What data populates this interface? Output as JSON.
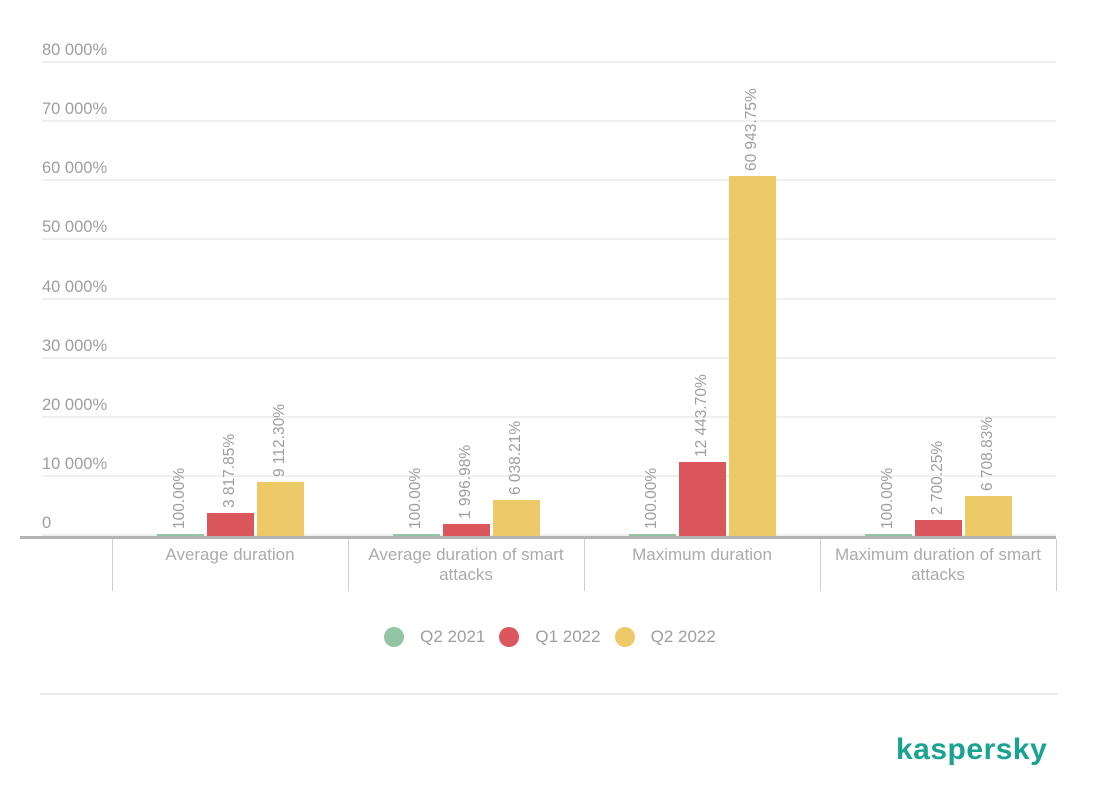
{
  "chart_data": {
    "type": "bar",
    "title": "",
    "categories": [
      "Average duration",
      "Average duration of smart attacks",
      "Maximum duration",
      "Maximum duration of smart attacks"
    ],
    "series": [
      {
        "name": "Q2 2021",
        "color": "#93c4a5",
        "values": [
          100.0,
          100.0,
          100.0,
          100.0
        ],
        "labels": [
          "100.00%",
          "100.00%",
          "100.00%",
          "100.00%"
        ]
      },
      {
        "name": "Q1 2022",
        "color": "#dc575d",
        "values": [
          3817.85,
          1996.98,
          12443.7,
          2700.25
        ],
        "labels": [
          "3 817.85%",
          "1 996.98%",
          "12 443.70%",
          "2 700.25%"
        ]
      },
      {
        "name": "Q2 2022",
        "color": "#edc968",
        "values": [
          9112.3,
          6038.21,
          60943.75,
          6708.83
        ],
        "labels": [
          "9 112.30%",
          "6 038.21%",
          "60 943.75%",
          "6 708.83%"
        ]
      }
    ],
    "y_axis": {
      "min": 0,
      "max": 80000,
      "ticks": [
        {
          "value": 80000,
          "label": "80 000%"
        },
        {
          "value": 70000,
          "label": "70 000%"
        },
        {
          "value": 60000,
          "label": "60 000%"
        },
        {
          "value": 50000,
          "label": "50 000%"
        },
        {
          "value": 40000,
          "label": "40 000%"
        },
        {
          "value": 30000,
          "label": "30 000%"
        },
        {
          "value": 20000,
          "label": "20 000%"
        },
        {
          "value": 10000,
          "label": "10 000%"
        },
        {
          "value": 0,
          "label": "0"
        }
      ]
    },
    "legend_position": "bottom",
    "grid": true,
    "value_labels_rotated": true
  },
  "branding": {
    "logo_text": "kaspersky",
    "logo_color": "#1aa391"
  }
}
